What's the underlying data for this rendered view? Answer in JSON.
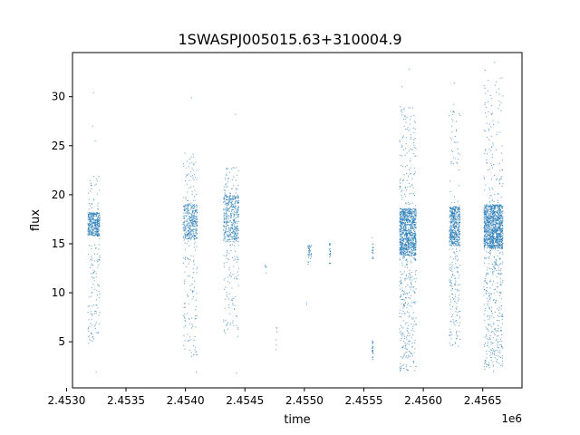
{
  "chart_data": {
    "type": "scatter",
    "title": "1SWASPJ005015.63+310004.9",
    "xlabel": "time",
    "ylabel": "flux",
    "x_offset_label": "1e6",
    "xlim": [
      2.45305,
      2.45683
    ],
    "ylim": [
      0.3,
      34.5
    ],
    "x_ticks": [
      {
        "value": 2.453,
        "label": "2.4530"
      },
      {
        "value": 2.4535,
        "label": "2.4535"
      },
      {
        "value": 2.454,
        "label": "2.4540"
      },
      {
        "value": 2.4545,
        "label": "2.4545"
      },
      {
        "value": 2.455,
        "label": "2.4550"
      },
      {
        "value": 2.4555,
        "label": "2.4555"
      },
      {
        "value": 2.456,
        "label": "2.4560"
      },
      {
        "value": 2.4565,
        "label": "2.4565"
      }
    ],
    "y_ticks": [
      {
        "value": 5,
        "label": "5"
      },
      {
        "value": 10,
        "label": "10"
      },
      {
        "value": 15,
        "label": "15"
      },
      {
        "value": 20,
        "label": "20"
      },
      {
        "value": 25,
        "label": "25"
      },
      {
        "value": 30,
        "label": "30"
      }
    ],
    "grid": false,
    "marker_color": "#1f77b4",
    "clusters": [
      {
        "x0": 2.45318,
        "x1": 2.45328,
        "core_lo": 15.8,
        "core_hi": 18.2,
        "min": 4.7,
        "max": 22.0,
        "n": 500,
        "outliers": [
          {
            "x": 2.45323,
            "y": 30.4
          },
          {
            "x": 2.45322,
            "y": 27.0
          },
          {
            "x": 2.45324,
            "y": 25.5
          },
          {
            "x": 2.45325,
            "y": 1.9
          }
        ]
      },
      {
        "x0": 2.45398,
        "x1": 2.4541,
        "core_lo": 15.5,
        "core_hi": 19.0,
        "min": 3.2,
        "max": 24.3,
        "n": 500,
        "outliers": [
          {
            "x": 2.45405,
            "y": 29.9
          },
          {
            "x": 2.45409,
            "y": 1.9
          }
        ]
      },
      {
        "x0": 2.45432,
        "x1": 2.45445,
        "core_lo": 15.2,
        "core_hi": 20.0,
        "min": 5.5,
        "max": 23.0,
        "n": 550,
        "outliers": [
          {
            "x": 2.45442,
            "y": 28.2
          },
          {
            "x": 2.45443,
            "y": 1.8
          }
        ]
      },
      {
        "x0": 2.45467,
        "x1": 2.45468,
        "core_lo": 12.0,
        "core_hi": 12.8,
        "min": 12.0,
        "max": 12.8,
        "n": 6,
        "outliers": []
      },
      {
        "x0": 2.45476,
        "x1": 2.45477,
        "core_lo": 3.8,
        "core_hi": 6.8,
        "min": 3.8,
        "max": 6.8,
        "n": 6,
        "outliers": []
      },
      {
        "x0": 2.45503,
        "x1": 2.45506,
        "core_lo": 13.8,
        "core_hi": 14.8,
        "min": 12.5,
        "max": 14.8,
        "n": 40,
        "outliers": [
          {
            "x": 2.45502,
            "y": 9.0
          },
          {
            "x": 2.45502,
            "y": 8.8
          }
        ]
      },
      {
        "x0": 2.45521,
        "x1": 2.45522,
        "core_lo": 13.0,
        "core_hi": 15.0,
        "min": 13.0,
        "max": 15.0,
        "n": 25,
        "outliers": []
      },
      {
        "x0": 2.45557,
        "x1": 2.45558,
        "core_lo": 13.5,
        "core_hi": 15.0,
        "min": 13.5,
        "max": 15.8,
        "n": 20,
        "outliers": []
      },
      {
        "x0": 2.45557,
        "x1": 2.45558,
        "core_lo": 3.5,
        "core_hi": 5.0,
        "min": 3.2,
        "max": 6.0,
        "n": 25,
        "outliers": []
      },
      {
        "x0": 2.4558,
        "x1": 2.45594,
        "core_lo": 13.8,
        "core_hi": 18.6,
        "min": 2.0,
        "max": 29.0,
        "n": 1300,
        "outliers": [
          {
            "x": 2.45588,
            "y": 32.8
          },
          {
            "x": 2.45582,
            "y": 31.0
          }
        ]
      },
      {
        "x0": 2.45622,
        "x1": 2.45631,
        "core_lo": 14.8,
        "core_hi": 18.8,
        "min": 4.5,
        "max": 30.0,
        "n": 650,
        "outliers": [
          {
            "x": 2.45626,
            "y": 31.4
          }
        ]
      },
      {
        "x0": 2.45651,
        "x1": 2.45667,
        "core_lo": 14.5,
        "core_hi": 19.0,
        "min": 2.2,
        "max": 32.0,
        "n": 1500,
        "outliers": [
          {
            "x": 2.45652,
            "y": 32.7
          },
          {
            "x": 2.4566,
            "y": 33.5
          },
          {
            "x": 2.45659,
            "y": 2.0
          }
        ]
      }
    ]
  }
}
